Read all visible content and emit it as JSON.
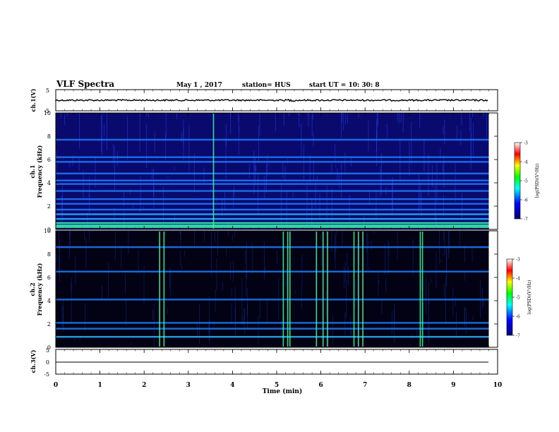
{
  "header": {
    "title": "VLF Spectra",
    "date": "May 1 , 2017",
    "station": "station= HUS",
    "start_ut": "start UT = 10: 30: 8"
  },
  "chart_data": [
    {
      "id": "ch1-waveform",
      "type": "line",
      "ylabel": "ch.1(V)",
      "ylim": [
        -5,
        5
      ],
      "yticks": [
        "5",
        "-5"
      ],
      "xlim": [
        0,
        10
      ],
      "trace": {
        "baseline": 0,
        "color": "#000000"
      }
    },
    {
      "id": "ch1-spectrogram",
      "type": "heatmap",
      "ylabel": [
        "ch.1",
        "Frequency (kHz)"
      ],
      "ylim": [
        0,
        10
      ],
      "yticks": [
        "0",
        "2",
        "4",
        "6",
        "8",
        "10"
      ],
      "xlim": [
        0,
        9.85
      ],
      "colorbar": {
        "label": "log(PSD)(V²/Hz)",
        "range": [
          -7,
          -3
        ],
        "ticks": [
          "-3",
          "-4",
          "-5",
          "-6",
          "-7"
        ],
        "colors": [
          "#00007a",
          "#0000ff",
          "#00ffff",
          "#00ff00",
          "#ffff00",
          "#ff0000",
          "#ffffff"
        ]
      },
      "bright_bands_khz": [
        0.2,
        0.35,
        0.55,
        0.9,
        1.3,
        1.7,
        2.2,
        2.6,
        3.3,
        3.9,
        4.2,
        4.8,
        5.8,
        6.2,
        7.7
      ],
      "strong_verticals_min": [
        3.57
      ]
    },
    {
      "id": "ch2-spectrogram",
      "type": "heatmap",
      "ylabel": [
        "ch.2",
        "Frequency (kHz)"
      ],
      "ylim": [
        0,
        10
      ],
      "yticks": [
        "0",
        "2",
        "4",
        "6",
        "8",
        "10"
      ],
      "xlim": [
        0,
        9.85
      ],
      "colorbar": {
        "label": "log(PSD)(V²/Hz)",
        "range": [
          -7,
          -3
        ],
        "ticks": [
          "-3",
          "-4",
          "-5",
          "-6",
          "-7"
        ],
        "colors": [
          "#00007a",
          "#0000ff",
          "#00ffff",
          "#00ff00",
          "#ffff00",
          "#ff0000",
          "#ffffff"
        ]
      },
      "bright_bands_khz": [
        0.9,
        1.6,
        2.1,
        4.1,
        6.5,
        8.6
      ],
      "strong_verticals_min": [
        2.35,
        2.45,
        5.15,
        5.25,
        5.3,
        5.9,
        6.05,
        6.15,
        6.75,
        6.85,
        6.95,
        8.25,
        8.3
      ]
    },
    {
      "id": "ch3-waveform",
      "type": "line",
      "ylabel": "ch.3(V)",
      "ylim": [
        -5,
        5
      ],
      "yticks": [
        "5",
        "0",
        "-5"
      ],
      "xlim": [
        0,
        10
      ],
      "trace": {
        "baseline": 0,
        "color": "#000000"
      }
    }
  ],
  "x_axis": {
    "label": "Time (min)",
    "ticks": [
      "0",
      "1",
      "2",
      "3",
      "4",
      "5",
      "6",
      "7",
      "8",
      "9",
      "10"
    ]
  }
}
